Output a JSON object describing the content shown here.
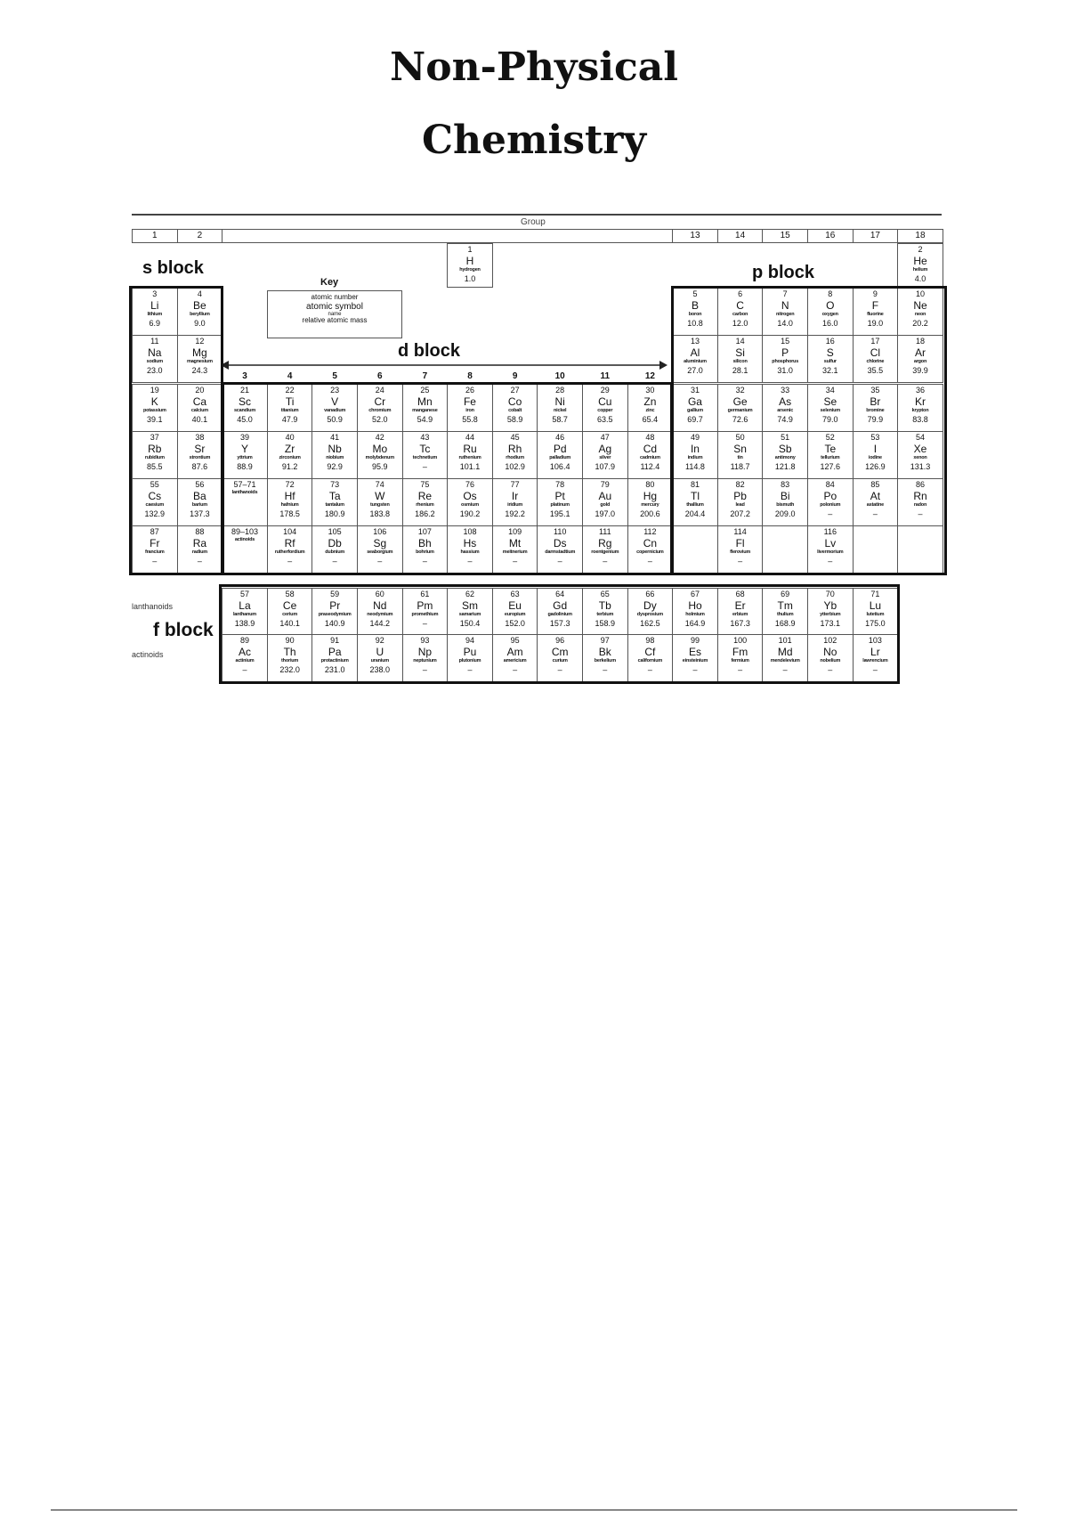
{
  "document": {
    "title_line1": "Non-Physical",
    "title_line2": "Chemistry"
  },
  "periodic_table": {
    "group_label": "Group",
    "groups_main": [
      "1",
      "2",
      "13",
      "14",
      "15",
      "16",
      "17",
      "18"
    ],
    "groups_d": [
      "3",
      "4",
      "5",
      "6",
      "7",
      "8",
      "9",
      "10",
      "11",
      "12"
    ],
    "s_block_label": "s block",
    "p_block_label": "p block",
    "d_block_label": "d block",
    "f_block_label": "f block",
    "lanthanoids_label": "lanthanoids",
    "actinoids_label": "actinoids",
    "lanthanoid_placeholder": [
      "57–71",
      "lanthanoids"
    ],
    "actinoid_placeholder": [
      "89–103",
      "actinoids"
    ],
    "key": {
      "title": "Key",
      "lines": [
        "atomic number",
        "atomic symbol",
        "name",
        "relative atomic mass"
      ]
    },
    "periods": [
      [
        [
          "1",
          "H",
          "hydrogen",
          "1.0"
        ],
        null,
        null,
        null,
        null,
        null,
        null,
        null,
        null,
        null,
        null,
        null,
        null,
        null,
        null,
        null,
        null,
        [
          "2",
          "He",
          "helium",
          "4.0"
        ]
      ],
      [
        [
          "3",
          "Li",
          "lithium",
          "6.9"
        ],
        [
          "4",
          "Be",
          "beryllium",
          "9.0"
        ],
        null,
        null,
        null,
        null,
        null,
        null,
        null,
        null,
        null,
        null,
        [
          "5",
          "B",
          "boron",
          "10.8"
        ],
        [
          "6",
          "C",
          "carbon",
          "12.0"
        ],
        [
          "7",
          "N",
          "nitrogen",
          "14.0"
        ],
        [
          "8",
          "O",
          "oxygen",
          "16.0"
        ],
        [
          "9",
          "F",
          "fluorine",
          "19.0"
        ],
        [
          "10",
          "Ne",
          "neon",
          "20.2"
        ]
      ],
      [
        [
          "11",
          "Na",
          "sodium",
          "23.0"
        ],
        [
          "12",
          "Mg",
          "magnesium",
          "24.3"
        ],
        null,
        null,
        null,
        null,
        null,
        null,
        null,
        null,
        null,
        null,
        [
          "13",
          "Al",
          "aluminium",
          "27.0"
        ],
        [
          "14",
          "Si",
          "silicon",
          "28.1"
        ],
        [
          "15",
          "P",
          "phosphorus",
          "31.0"
        ],
        [
          "16",
          "S",
          "sulfur",
          "32.1"
        ],
        [
          "17",
          "Cl",
          "chlorine",
          "35.5"
        ],
        [
          "18",
          "Ar",
          "argon",
          "39.9"
        ]
      ],
      [
        [
          "19",
          "K",
          "potassium",
          "39.1"
        ],
        [
          "20",
          "Ca",
          "calcium",
          "40.1"
        ],
        [
          "21",
          "Sc",
          "scandium",
          "45.0"
        ],
        [
          "22",
          "Ti",
          "titanium",
          "47.9"
        ],
        [
          "23",
          "V",
          "vanadium",
          "50.9"
        ],
        [
          "24",
          "Cr",
          "chromium",
          "52.0"
        ],
        [
          "25",
          "Mn",
          "manganese",
          "54.9"
        ],
        [
          "26",
          "Fe",
          "iron",
          "55.8"
        ],
        [
          "27",
          "Co",
          "cobalt",
          "58.9"
        ],
        [
          "28",
          "Ni",
          "nickel",
          "58.7"
        ],
        [
          "29",
          "Cu",
          "copper",
          "63.5"
        ],
        [
          "30",
          "Zn",
          "zinc",
          "65.4"
        ],
        [
          "31",
          "Ga",
          "gallium",
          "69.7"
        ],
        [
          "32",
          "Ge",
          "germanium",
          "72.6"
        ],
        [
          "33",
          "As",
          "arsenic",
          "74.9"
        ],
        [
          "34",
          "Se",
          "selenium",
          "79.0"
        ],
        [
          "35",
          "Br",
          "bromine",
          "79.9"
        ],
        [
          "36",
          "Kr",
          "krypton",
          "83.8"
        ]
      ],
      [
        [
          "37",
          "Rb",
          "rubidium",
          "85.5"
        ],
        [
          "38",
          "Sr",
          "strontium",
          "87.6"
        ],
        [
          "39",
          "Y",
          "yttrium",
          "88.9"
        ],
        [
          "40",
          "Zr",
          "zirconium",
          "91.2"
        ],
        [
          "41",
          "Nb",
          "niobium",
          "92.9"
        ],
        [
          "42",
          "Mo",
          "molybdenum",
          "95.9"
        ],
        [
          "43",
          "Tc",
          "technetium",
          "–"
        ],
        [
          "44",
          "Ru",
          "ruthenium",
          "101.1"
        ],
        [
          "45",
          "Rh",
          "rhodium",
          "102.9"
        ],
        [
          "46",
          "Pd",
          "palladium",
          "106.4"
        ],
        [
          "47",
          "Ag",
          "silver",
          "107.9"
        ],
        [
          "48",
          "Cd",
          "cadmium",
          "112.4"
        ],
        [
          "49",
          "In",
          "indium",
          "114.8"
        ],
        [
          "50",
          "Sn",
          "tin",
          "118.7"
        ],
        [
          "51",
          "Sb",
          "antimony",
          "121.8"
        ],
        [
          "52",
          "Te",
          "tellurium",
          "127.6"
        ],
        [
          "53",
          "I",
          "iodine",
          "126.9"
        ],
        [
          "54",
          "Xe",
          "xenon",
          "131.3"
        ]
      ],
      [
        [
          "55",
          "Cs",
          "caesium",
          "132.9"
        ],
        [
          "56",
          "Ba",
          "barium",
          "137.3"
        ],
        "LAN",
        [
          "72",
          "Hf",
          "hafnium",
          "178.5"
        ],
        [
          "73",
          "Ta",
          "tantalum",
          "180.9"
        ],
        [
          "74",
          "W",
          "tungsten",
          "183.8"
        ],
        [
          "75",
          "Re",
          "rhenium",
          "186.2"
        ],
        [
          "76",
          "Os",
          "osmium",
          "190.2"
        ],
        [
          "77",
          "Ir",
          "iridium",
          "192.2"
        ],
        [
          "78",
          "Pt",
          "platinum",
          "195.1"
        ],
        [
          "79",
          "Au",
          "gold",
          "197.0"
        ],
        [
          "80",
          "Hg",
          "mercury",
          "200.6"
        ],
        [
          "81",
          "Tl",
          "thallium",
          "204.4"
        ],
        [
          "82",
          "Pb",
          "lead",
          "207.2"
        ],
        [
          "83",
          "Bi",
          "bismuth",
          "209.0"
        ],
        [
          "84",
          "Po",
          "polonium",
          "–"
        ],
        [
          "85",
          "At",
          "astatine",
          "–"
        ],
        [
          "86",
          "Rn",
          "radon",
          "–"
        ]
      ],
      [
        [
          "87",
          "Fr",
          "francium",
          "–"
        ],
        [
          "88",
          "Ra",
          "radium",
          "–"
        ],
        "ACT",
        [
          "104",
          "Rf",
          "rutherfordium",
          "–"
        ],
        [
          "105",
          "Db",
          "dubnium",
          "–"
        ],
        [
          "106",
          "Sg",
          "seaborgium",
          "–"
        ],
        [
          "107",
          "Bh",
          "bohrium",
          "–"
        ],
        [
          "108",
          "Hs",
          "hassium",
          "–"
        ],
        [
          "109",
          "Mt",
          "meitnerium",
          "–"
        ],
        [
          "110",
          "Ds",
          "darmstadtium",
          "–"
        ],
        [
          "111",
          "Rg",
          "roentgenium",
          "–"
        ],
        [
          "112",
          "Cn",
          "copernicium",
          "–"
        ],
        "EMPTY",
        [
          "114",
          "Fl",
          "flerovium",
          "–"
        ],
        "EMPTY",
        [
          "116",
          "Lv",
          "livermorium",
          "–"
        ],
        "EMPTY",
        "EMPTY"
      ]
    ],
    "lanthanoids": [
      [
        "57",
        "La",
        "lanthanum",
        "138.9"
      ],
      [
        "58",
        "Ce",
        "cerium",
        "140.1"
      ],
      [
        "59",
        "Pr",
        "praseodymium",
        "140.9"
      ],
      [
        "60",
        "Nd",
        "neodymium",
        "144.2"
      ],
      [
        "61",
        "Pm",
        "promethium",
        "–"
      ],
      [
        "62",
        "Sm",
        "samarium",
        "150.4"
      ],
      [
        "63",
        "Eu",
        "europium",
        "152.0"
      ],
      [
        "64",
        "Gd",
        "gadolinium",
        "157.3"
      ],
      [
        "65",
        "Tb",
        "terbium",
        "158.9"
      ],
      [
        "66",
        "Dy",
        "dysprosium",
        "162.5"
      ],
      [
        "67",
        "Ho",
        "holmium",
        "164.9"
      ],
      [
        "68",
        "Er",
        "erbium",
        "167.3"
      ],
      [
        "69",
        "Tm",
        "thulium",
        "168.9"
      ],
      [
        "70",
        "Yb",
        "ytterbium",
        "173.1"
      ],
      [
        "71",
        "Lu",
        "lutetium",
        "175.0"
      ]
    ],
    "actinoids": [
      [
        "89",
        "Ac",
        "actinium",
        "–"
      ],
      [
        "90",
        "Th",
        "thorium",
        "232.0"
      ],
      [
        "91",
        "Pa",
        "protactinium",
        "231.0"
      ],
      [
        "92",
        "U",
        "uranium",
        "238.0"
      ],
      [
        "93",
        "Np",
        "neptunium",
        "–"
      ],
      [
        "94",
        "Pu",
        "plutonium",
        "–"
      ],
      [
        "95",
        "Am",
        "americium",
        "–"
      ],
      [
        "96",
        "Cm",
        "curium",
        "–"
      ],
      [
        "97",
        "Bk",
        "berkelium",
        "–"
      ],
      [
        "98",
        "Cf",
        "californium",
        "–"
      ],
      [
        "99",
        "Es",
        "einsteinium",
        "–"
      ],
      [
        "100",
        "Fm",
        "fermium",
        "–"
      ],
      [
        "101",
        "Md",
        "mendelevium",
        "–"
      ],
      [
        "102",
        "No",
        "nobelium",
        "–"
      ],
      [
        "103",
        "Lr",
        "lawrencium",
        "–"
      ]
    ]
  }
}
